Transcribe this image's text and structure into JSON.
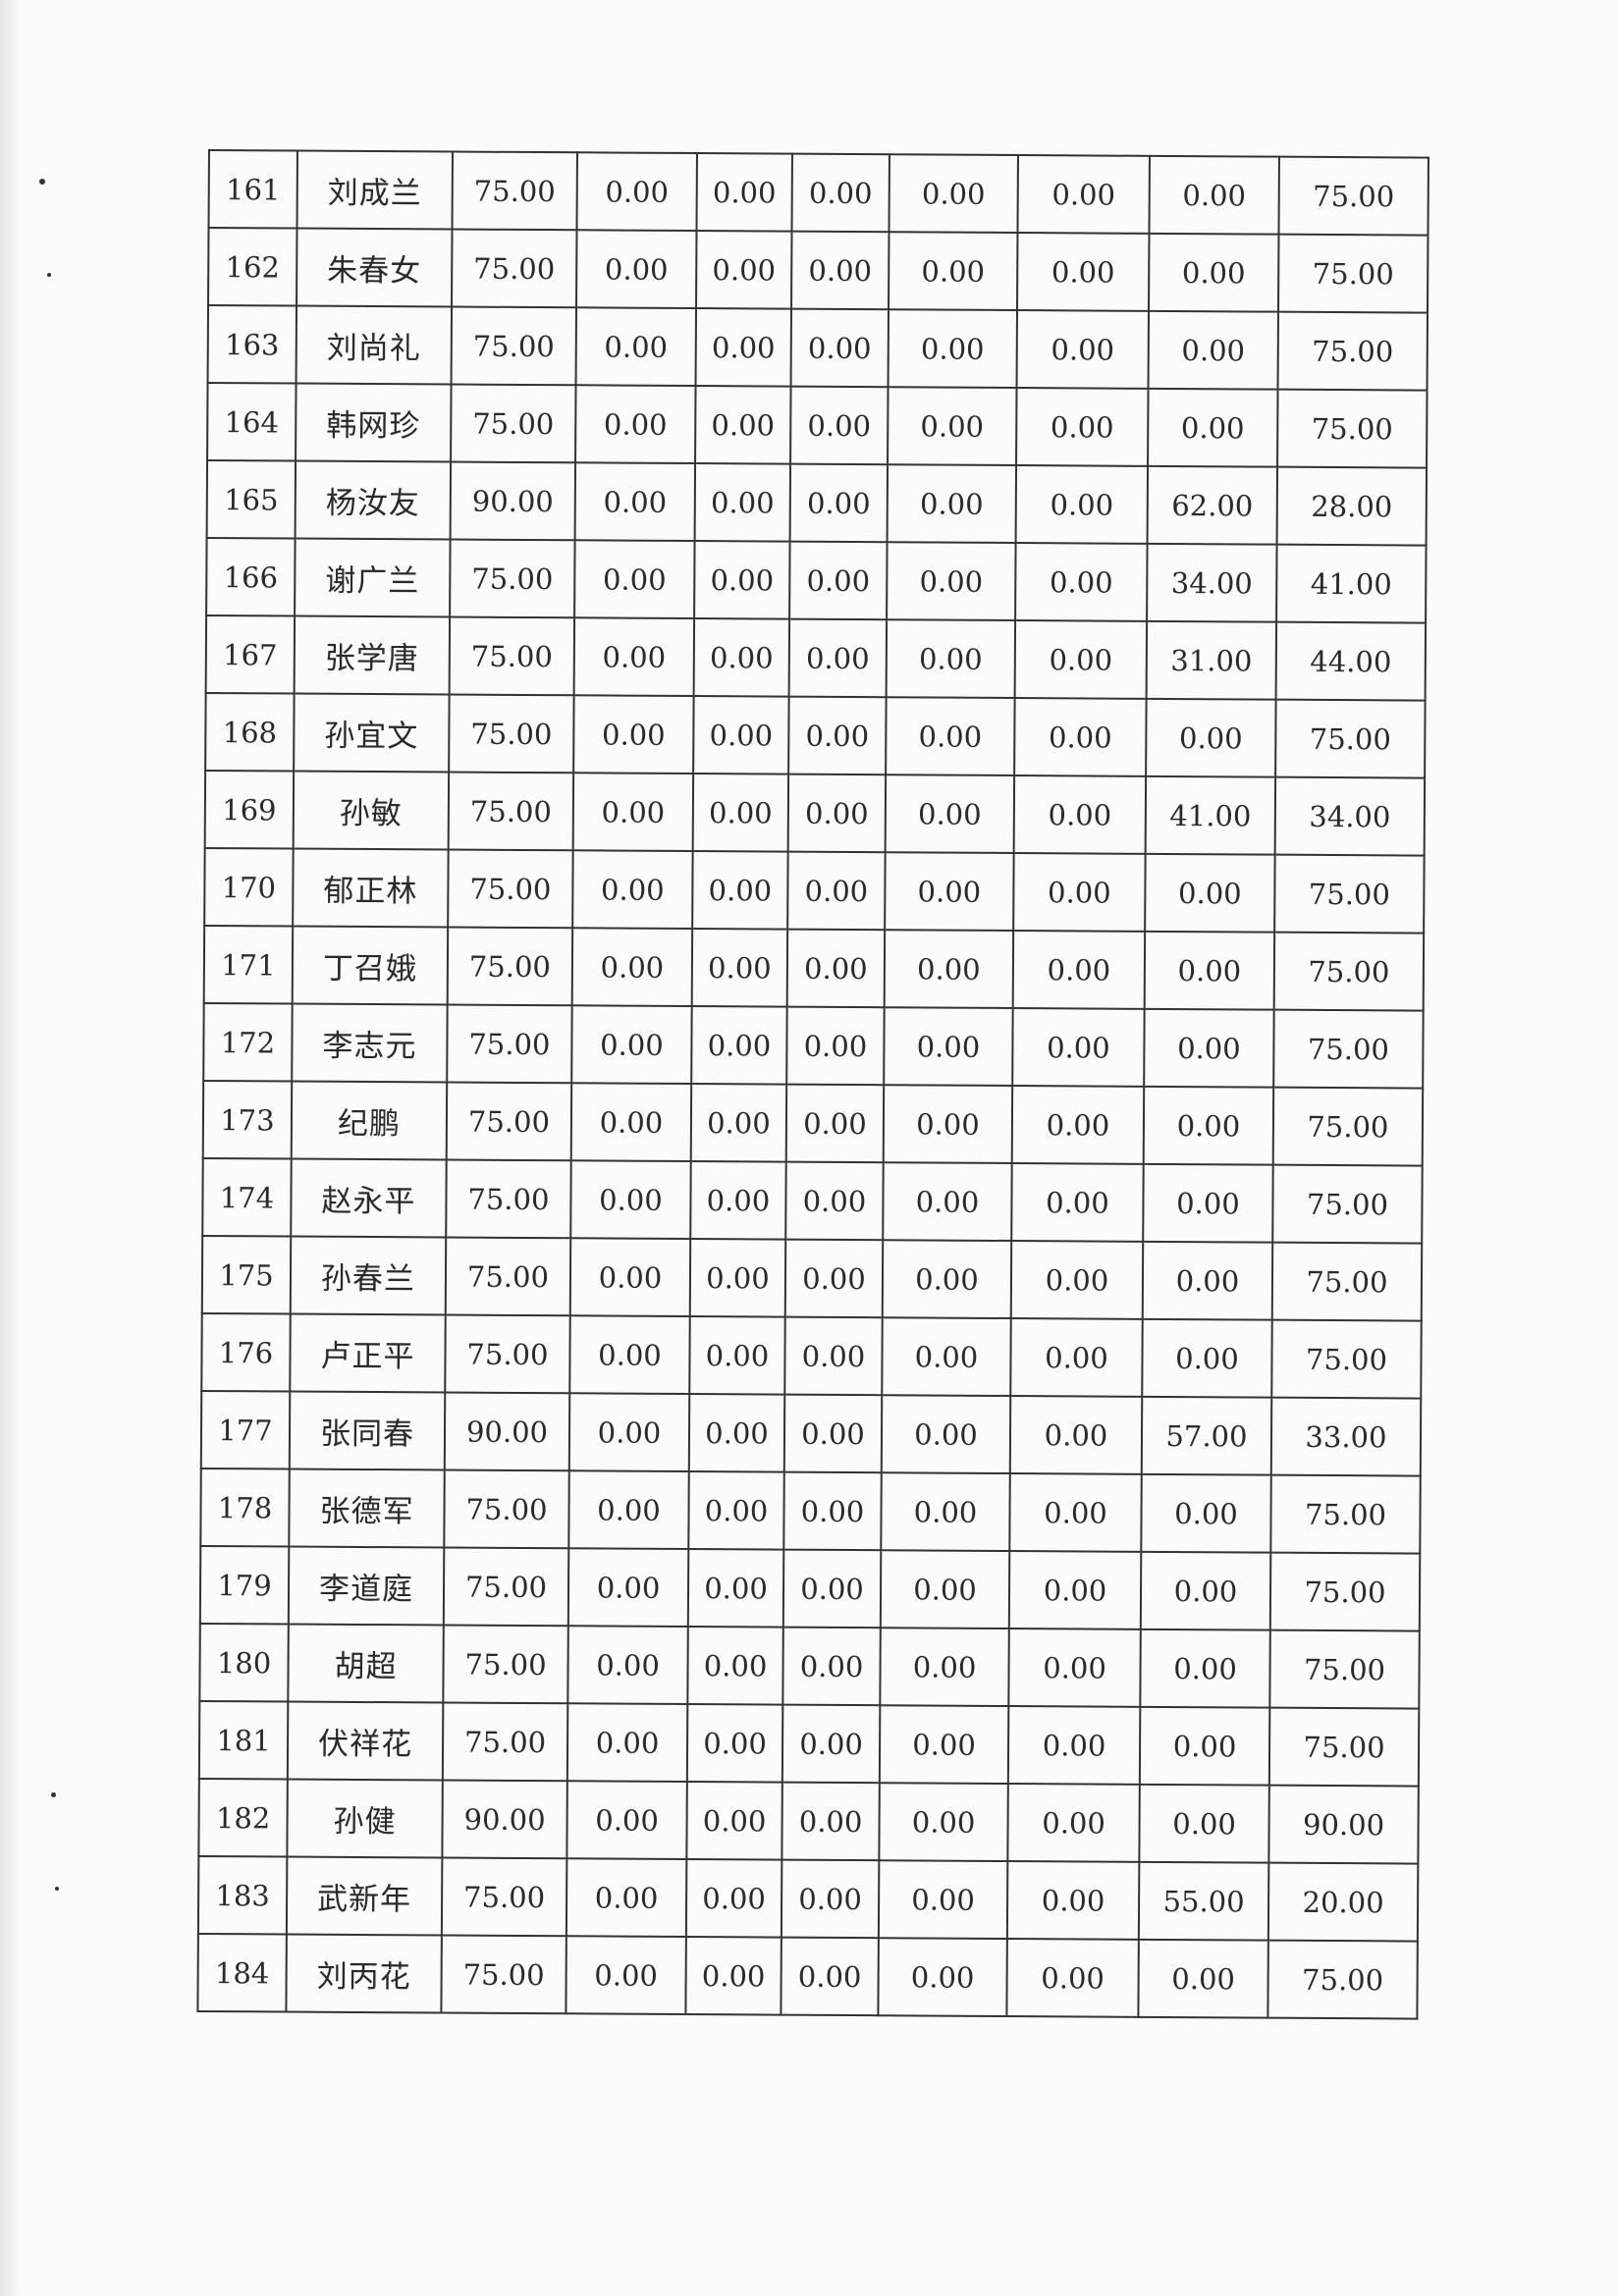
{
  "table": {
    "rows": [
      [
        "161",
        "刘成兰",
        "75.00",
        "0.00",
        "0.00",
        "0.00",
        "0.00",
        "0.00",
        "0.00",
        "75.00"
      ],
      [
        "162",
        "朱春女",
        "75.00",
        "0.00",
        "0.00",
        "0.00",
        "0.00",
        "0.00",
        "0.00",
        "75.00"
      ],
      [
        "163",
        "刘尚礼",
        "75.00",
        "0.00",
        "0.00",
        "0.00",
        "0.00",
        "0.00",
        "0.00",
        "75.00"
      ],
      [
        "164",
        "韩网珍",
        "75.00",
        "0.00",
        "0.00",
        "0.00",
        "0.00",
        "0.00",
        "0.00",
        "75.00"
      ],
      [
        "165",
        "杨汝友",
        "90.00",
        "0.00",
        "0.00",
        "0.00",
        "0.00",
        "0.00",
        "62.00",
        "28.00"
      ],
      [
        "166",
        "谢广兰",
        "75.00",
        "0.00",
        "0.00",
        "0.00",
        "0.00",
        "0.00",
        "34.00",
        "41.00"
      ],
      [
        "167",
        "张学唐",
        "75.00",
        "0.00",
        "0.00",
        "0.00",
        "0.00",
        "0.00",
        "31.00",
        "44.00"
      ],
      [
        "168",
        "孙宜文",
        "75.00",
        "0.00",
        "0.00",
        "0.00",
        "0.00",
        "0.00",
        "0.00",
        "75.00"
      ],
      [
        "169",
        "孙敏",
        "75.00",
        "0.00",
        "0.00",
        "0.00",
        "0.00",
        "0.00",
        "41.00",
        "34.00"
      ],
      [
        "170",
        "郁正林",
        "75.00",
        "0.00",
        "0.00",
        "0.00",
        "0.00",
        "0.00",
        "0.00",
        "75.00"
      ],
      [
        "171",
        "丁召娥",
        "75.00",
        "0.00",
        "0.00",
        "0.00",
        "0.00",
        "0.00",
        "0.00",
        "75.00"
      ],
      [
        "172",
        "李志元",
        "75.00",
        "0.00",
        "0.00",
        "0.00",
        "0.00",
        "0.00",
        "0.00",
        "75.00"
      ],
      [
        "173",
        "纪鹏",
        "75.00",
        "0.00",
        "0.00",
        "0.00",
        "0.00",
        "0.00",
        "0.00",
        "75.00"
      ],
      [
        "174",
        "赵永平",
        "75.00",
        "0.00",
        "0.00",
        "0.00",
        "0.00",
        "0.00",
        "0.00",
        "75.00"
      ],
      [
        "175",
        "孙春兰",
        "75.00",
        "0.00",
        "0.00",
        "0.00",
        "0.00",
        "0.00",
        "0.00",
        "75.00"
      ],
      [
        "176",
        "卢正平",
        "75.00",
        "0.00",
        "0.00",
        "0.00",
        "0.00",
        "0.00",
        "0.00",
        "75.00"
      ],
      [
        "177",
        "张同春",
        "90.00",
        "0.00",
        "0.00",
        "0.00",
        "0.00",
        "0.00",
        "57.00",
        "33.00"
      ],
      [
        "178",
        "张德军",
        "75.00",
        "0.00",
        "0.00",
        "0.00",
        "0.00",
        "0.00",
        "0.00",
        "75.00"
      ],
      [
        "179",
        "李道庭",
        "75.00",
        "0.00",
        "0.00",
        "0.00",
        "0.00",
        "0.00",
        "0.00",
        "75.00"
      ],
      [
        "180",
        "胡超",
        "75.00",
        "0.00",
        "0.00",
        "0.00",
        "0.00",
        "0.00",
        "0.00",
        "75.00"
      ],
      [
        "181",
        "伏祥花",
        "75.00",
        "0.00",
        "0.00",
        "0.00",
        "0.00",
        "0.00",
        "0.00",
        "75.00"
      ],
      [
        "182",
        "孙健",
        "90.00",
        "0.00",
        "0.00",
        "0.00",
        "0.00",
        "0.00",
        "0.00",
        "90.00"
      ],
      [
        "183",
        "武新年",
        "75.00",
        "0.00",
        "0.00",
        "0.00",
        "0.00",
        "0.00",
        "55.00",
        "20.00"
      ],
      [
        "184",
        "刘丙花",
        "75.00",
        "0.00",
        "0.00",
        "0.00",
        "0.00",
        "0.00",
        "0.00",
        "75.00"
      ]
    ]
  }
}
